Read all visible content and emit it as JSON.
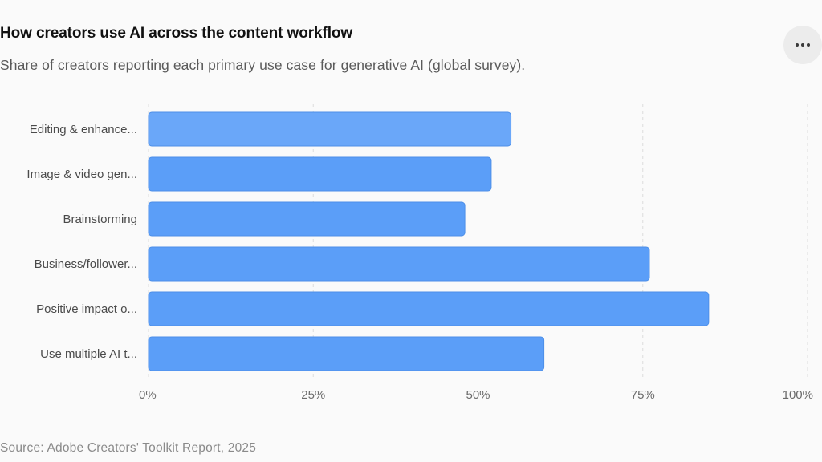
{
  "header": {
    "title": "How creators use AI across the content workflow",
    "subtitle": "Share of creators reporting each primary use case for generative AI (global survey).",
    "more_icon": "more-horizontal-icon"
  },
  "footer": {
    "source": "Source: Adobe Creators' Toolkit Report, 2025"
  },
  "colors": {
    "bar": "#5b9ef8",
    "bar_highlight": "#6aa7f9",
    "grid": "#dcdcdc",
    "axis_text": "#6b6b6b"
  },
  "chart_data": {
    "type": "bar",
    "orientation": "horizontal",
    "categories": [
      "Editing & enhance...",
      "Image & video gen...",
      "Brainstorming",
      "Business/follower...",
      "Positive impact o...",
      "Use multiple AI t..."
    ],
    "values": [
      55,
      52,
      48,
      76,
      85,
      60
    ],
    "value_unit": "%",
    "xlim": [
      0,
      100
    ],
    "xticks": [
      0,
      25,
      50,
      75,
      100
    ],
    "xtick_labels": [
      "0%",
      "25%",
      "50%",
      "75%",
      "100%"
    ],
    "grid": "vertical dashed",
    "legend": "none"
  }
}
